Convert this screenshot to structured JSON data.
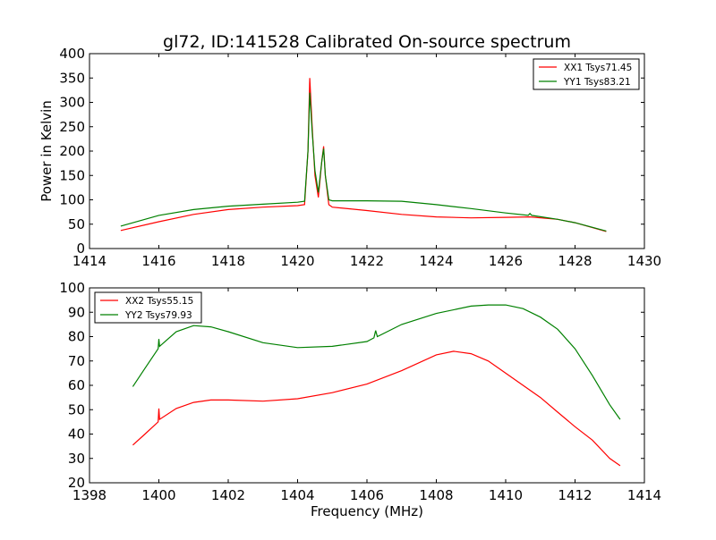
{
  "chart_data": [
    {
      "type": "line",
      "title": "gl72, ID:141528 Calibrated On-source spectrum",
      "xlabel": "",
      "ylabel": "Power in Kelvin",
      "xlim": [
        1414,
        1430
      ],
      "ylim": [
        0,
        400
      ],
      "xticks": [
        1414,
        1416,
        1418,
        1420,
        1422,
        1424,
        1426,
        1428,
        1430
      ],
      "yticks": [
        0,
        50,
        100,
        150,
        200,
        250,
        300,
        350,
        400
      ],
      "legend": "top-right",
      "series": [
        {
          "name": "XX1 Tsys71.45",
          "color": "#ff0000",
          "x": [
            1414.9,
            1416,
            1417,
            1418,
            1419,
            1420,
            1420.2,
            1420.3,
            1420.35,
            1420.42,
            1420.5,
            1420.6,
            1420.7,
            1420.75,
            1420.8,
            1420.9,
            1421,
            1422,
            1423,
            1424,
            1425,
            1426,
            1426.7,
            1427.5,
            1428,
            1428.9
          ],
          "y": [
            37,
            55,
            70,
            80,
            85,
            88,
            90,
            200,
            350,
            250,
            150,
            105,
            180,
            210,
            150,
            90,
            85,
            78,
            70,
            65,
            63,
            64,
            65,
            60,
            53,
            35
          ]
        },
        {
          "name": "YY1 Tsys83.21",
          "color": "#008000",
          "x": [
            1414.9,
            1416,
            1417,
            1418,
            1419,
            1420,
            1420.2,
            1420.3,
            1420.35,
            1420.42,
            1420.5,
            1420.6,
            1420.7,
            1420.75,
            1420.8,
            1420.9,
            1421,
            1422,
            1423,
            1424,
            1425,
            1426,
            1426.65,
            1426.7,
            1426.75,
            1427.5,
            1428,
            1428.9
          ],
          "y": [
            46,
            68,
            80,
            87,
            91,
            95,
            97,
            200,
            320,
            240,
            160,
            115,
            180,
            205,
            150,
            100,
            98,
            98,
            97,
            90,
            82,
            73,
            68,
            72,
            68,
            60,
            53,
            36
          ]
        }
      ]
    },
    {
      "type": "line",
      "title": "",
      "xlabel": "Frequency (MHz)",
      "ylabel": "",
      "xlim": [
        1398,
        1414
      ],
      "ylim": [
        20,
        100
      ],
      "xticks": [
        1398,
        1400,
        1402,
        1404,
        1406,
        1408,
        1410,
        1412,
        1414
      ],
      "yticks": [
        20,
        30,
        40,
        50,
        60,
        70,
        80,
        90,
        100
      ],
      "legend": "top-left",
      "series": [
        {
          "name": "XX2 Tsys55.15",
          "color": "#ff0000",
          "x": [
            1399.25,
            1399.6,
            1399.98,
            1400,
            1400.02,
            1400.5,
            1401,
            1401.5,
            1402,
            1403,
            1404,
            1405,
            1406,
            1407,
            1408,
            1408.5,
            1409,
            1409.5,
            1410,
            1410.5,
            1411,
            1411.5,
            1412,
            1412.5,
            1413,
            1413.3
          ],
          "y": [
            35.5,
            40,
            45,
            50.5,
            46,
            50.5,
            53,
            54,
            54,
            53.5,
            54.5,
            57,
            60.5,
            66,
            72.5,
            74,
            73,
            70,
            65,
            60,
            55,
            49,
            43,
            37.5,
            30,
            27
          ]
        },
        {
          "name": "YY2 Tsys79.93",
          "color": "#008000",
          "x": [
            1399.25,
            1399.6,
            1399.98,
            1400,
            1400.02,
            1400.5,
            1401,
            1401.5,
            1402,
            1403,
            1404,
            1405,
            1406,
            1406.2,
            1406.25,
            1406.3,
            1407,
            1408,
            1409,
            1409.5,
            1410,
            1410.5,
            1411,
            1411.5,
            1412,
            1412.5,
            1413,
            1413.3
          ],
          "y": [
            59.5,
            67,
            75,
            79,
            76,
            82,
            84.5,
            84,
            82,
            77.5,
            75.5,
            76,
            78,
            79.5,
            82.5,
            80,
            85,
            89.5,
            92.5,
            93,
            93,
            91.5,
            88,
            83,
            75,
            64,
            52,
            46
          ]
        }
      ]
    }
  ]
}
